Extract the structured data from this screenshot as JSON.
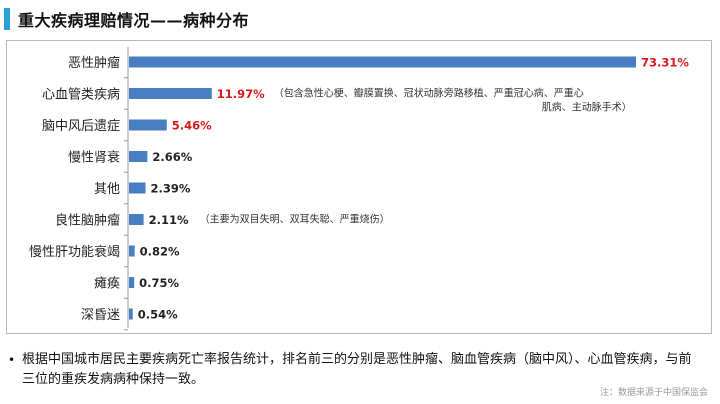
{
  "header": {
    "title": "重大疾病理赔情况——病种分布"
  },
  "chart_data": {
    "type": "bar",
    "orientation": "horizontal",
    "categories": [
      "恶性肿瘤",
      "心血管类疾病",
      "脑中风后遗症",
      "慢性肾衰",
      "其他",
      "良性脑肿瘤",
      "慢性肝功能衰竭",
      "瘫痪",
      "深昏迷"
    ],
    "values": [
      73.31,
      11.97,
      5.46,
      2.66,
      2.39,
      2.11,
      0.82,
      0.75,
      0.54
    ],
    "value_labels": [
      "73.31%",
      "11.97%",
      "5.46%",
      "2.66%",
      "2.39%",
      "2.11%",
      "0.82%",
      "0.75%",
      "0.54%"
    ],
    "highlight_color": "#d9191c",
    "normal_label_color": "#222222",
    "highlight_indices": [
      0,
      1,
      2
    ],
    "bar_color": "#4a7ec2",
    "notes": {
      "1": [
        "（包含急性心梗、瓣膜置换、冠状动脉旁路移植、严重冠心病、严重心",
        "肌病、主动脉手术）"
      ],
      "5": [
        "（主要为双目失明、双耳失聪、严重烧伤）"
      ]
    },
    "xlim": [
      0,
      73.31
    ],
    "grid": false,
    "legend": "none"
  },
  "footer": {
    "bullet": "•",
    "note": "根据中国城市居民主要疾病死亡率报告统计，排名前三的分别是恶性肿瘤、脑血管疾病（脑中风）、心血管疾病，与前三位的重疾发病病种保持一致。",
    "source": "注：数据来源于中国保监会"
  }
}
